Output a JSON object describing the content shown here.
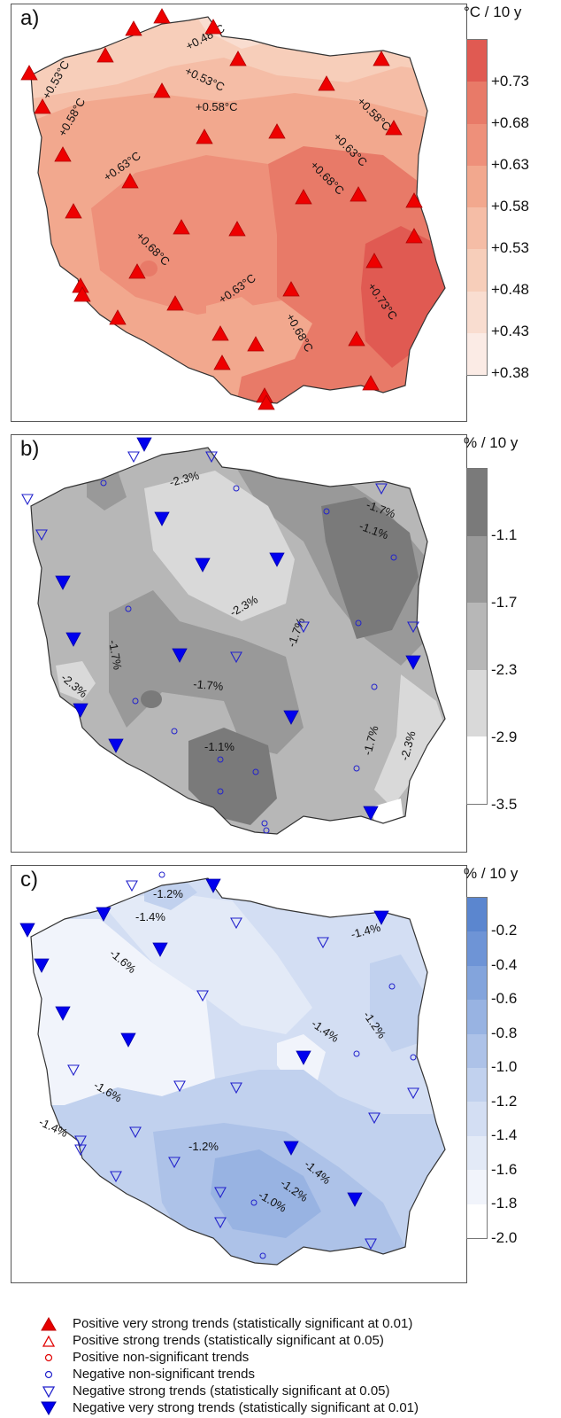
{
  "panels": [
    {
      "id": "a",
      "label": "a)",
      "unit": "°C / 10 y",
      "colorbar": {
        "ticks": [
          "+0.73",
          "+0.68",
          "+0.63",
          "+0.58",
          "+0.53",
          "+0.48",
          "+0.43",
          "+0.38"
        ],
        "colors": [
          "#e05a52",
          "#e87a68",
          "#ee907a",
          "#f2a88e",
          "#f5bda6",
          "#f7ceba",
          "#f9ddd0",
          "#fbebe5"
        ]
      },
      "contour_labels": [
        "+0.48°C",
        "+0.53°C",
        "+0.53°C",
        "+0.58°C",
        "+0.58°C",
        "+0.58°C",
        "+0.63°C",
        "+0.63°C",
        "+0.68°C",
        "+0.68°C",
        "+0.63°C",
        "+0.68°C",
        "+0.73°C"
      ],
      "station_markers": "positive-very-strong-triangle"
    },
    {
      "id": "b",
      "label": "b)",
      "unit": "% / 10 y",
      "colorbar": {
        "ticks": [
          "-1.1",
          "-1.7",
          "-2.3",
          "-2.9",
          "-3.5"
        ],
        "colors": [
          "#7a7a7a",
          "#999999",
          "#b7b7b7",
          "#d9d9d9",
          "#ffffff"
        ]
      },
      "contour_labels": [
        "-2.3%",
        "-1.7%",
        "-1.1%",
        "-2.3%",
        "-1.7%",
        "-1.7%",
        "-2.3%",
        "-1.7%",
        "-1.1%",
        "-1.7%",
        "-2.3%"
      ],
      "station_markers": "mixed-negative"
    },
    {
      "id": "c",
      "label": "c)",
      "unit": "% / 10 y",
      "colorbar": {
        "ticks": [
          "-0.2",
          "-0.4",
          "-0.6",
          "-0.8",
          "-1.0",
          "-1.2",
          "-1.4",
          "-1.6",
          "-1.8",
          "-2.0"
        ],
        "colors": [
          "#5b86cf",
          "#6e94d6",
          "#83a4dc",
          "#98b3e2",
          "#adc2e8",
          "#c1d1ee",
          "#d3def3",
          "#e3eaf7",
          "#f1f4fb",
          "#ffffff"
        ]
      },
      "contour_labels": [
        "-1.2%",
        "-1.4%",
        "-1.6%",
        "-1.4%",
        "-1.4%",
        "-1.2%",
        "-1.6%",
        "-1.4%",
        "-1.2%",
        "-1.4%",
        "-1.2%",
        "-1.0%"
      ],
      "station_markers": "mixed-negative"
    }
  ],
  "legend": [
    {
      "icon": "filled-red-up-triangle-icon",
      "label": "Positive very strong trends (statistically significant at 0.01)"
    },
    {
      "icon": "open-red-up-triangle-icon",
      "label": "Positive strong trends (statistically significant at 0.05)"
    },
    {
      "icon": "open-red-circle-icon",
      "label": "Positive non-significant trends"
    },
    {
      "icon": "open-blue-circle-icon",
      "label": "Negative non-significant trends"
    },
    {
      "icon": "open-blue-down-triangle-icon",
      "label": "Negative strong trends (statistically significant at 0.05)"
    },
    {
      "icon": "filled-blue-down-triangle-icon",
      "label": "Negative very strong trends (statistically significant at 0.01)"
    }
  ]
}
